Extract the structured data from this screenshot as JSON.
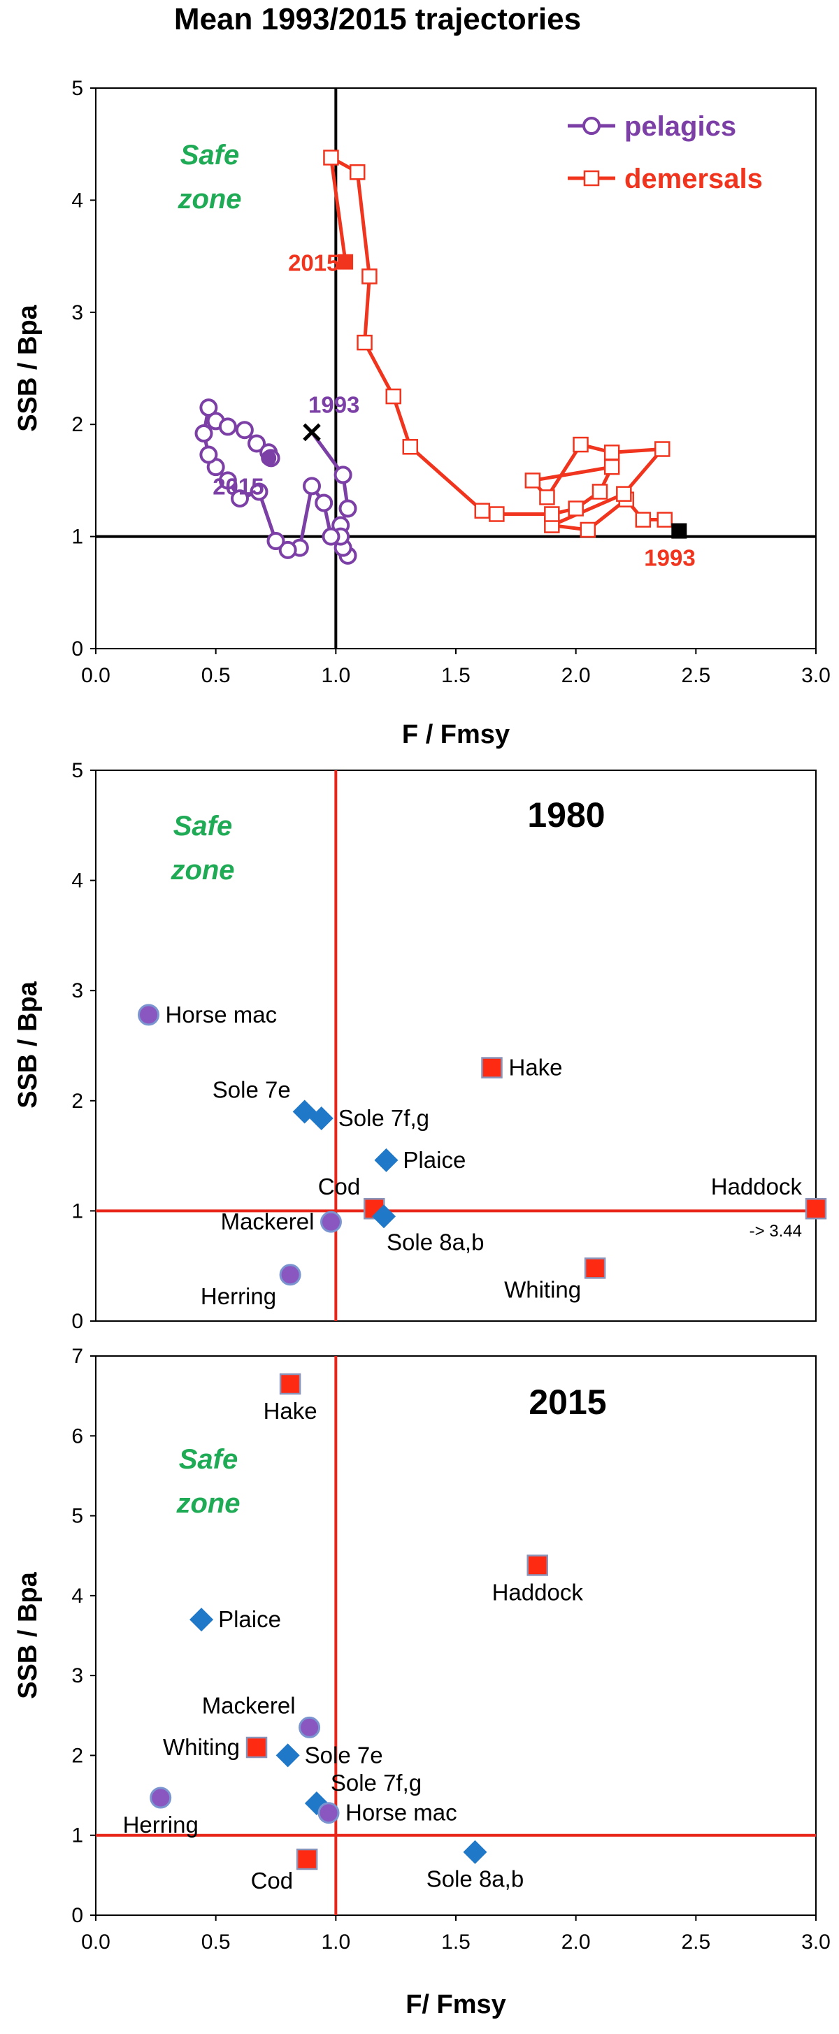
{
  "figure_title": "Mean 1993/2015 trajectories",
  "colors": {
    "pelagic": "#7b3fa6",
    "demersal": "#f0341d",
    "safe": "#1faa55",
    "refline_top": "#000000",
    "refline_lower": "#e8261a",
    "diamond": "#1f78c8",
    "circle_fill": "#8a56bf",
    "circle_edge": "#7a95d0",
    "square_edge": "#8a93b8"
  },
  "icons": {
    "pelagic_marker": "open-circle-icon",
    "demersal_marker": "open-square-icon",
    "cross_marker": "cross-icon",
    "diamond_marker": "diamond-icon"
  },
  "chart_data": [
    {
      "type": "line",
      "title": "Mean 1993/2015 trajectories",
      "xlabel": "F / Fmsy",
      "ylabel": "SSB / Bpa",
      "xlim": [
        0,
        3
      ],
      "ylim": [
        0,
        5
      ],
      "x_ticks": [
        "0.0",
        "0.5",
        "1.0",
        "1.5",
        "2.0",
        "2.5",
        "3.0"
      ],
      "y_ticks": [
        "0",
        "1",
        "2",
        "3",
        "4",
        "5"
      ],
      "grid": false,
      "reference_lines": {
        "x": 1,
        "y": 1
      },
      "zone_label": [
        "Safe",
        "zone"
      ],
      "legend_position": "top-right",
      "series": [
        {
          "name": "pelagics",
          "marker": "open-circle",
          "x": [
            0.9,
            1.03,
            1.05,
            1.02,
            1.05,
            1.03,
            1.02,
            0.98,
            0.95,
            0.9,
            0.85,
            0.8,
            0.75,
            0.68,
            0.6,
            0.55,
            0.5,
            0.47,
            0.45,
            0.47,
            0.5,
            0.55,
            0.62,
            0.67,
            0.72,
            0.73,
            0.72
          ],
          "y": [
            1.93,
            1.55,
            1.25,
            1.1,
            0.83,
            0.9,
            1.0,
            1.0,
            1.3,
            1.45,
            0.9,
            0.88,
            0.96,
            1.4,
            1.34,
            1.5,
            1.62,
            1.73,
            1.92,
            2.15,
            2.03,
            1.98,
            1.95,
            1.83,
            1.75,
            1.7,
            1.7
          ],
          "start": {
            "year": "1993",
            "x": 0.9,
            "y": 1.93,
            "marker": "cross"
          },
          "end": {
            "year": "2015",
            "x": 0.72,
            "y": 1.7,
            "marker": "filled-circle"
          }
        },
        {
          "name": "demersals",
          "marker": "open-square",
          "x": [
            2.43,
            2.37,
            2.28,
            2.21,
            2.05,
            1.9,
            2.2,
            2.36,
            2.15,
            2.02,
            1.88,
            1.82,
            2.15,
            2.1,
            2.0,
            1.9,
            1.67,
            1.61,
            1.31,
            1.24,
            1.12,
            1.14,
            1.09,
            0.98,
            1.04
          ],
          "y": [
            1.05,
            1.15,
            1.15,
            1.33,
            1.06,
            1.1,
            1.38,
            1.78,
            1.75,
            1.82,
            1.35,
            1.5,
            1.62,
            1.4,
            1.25,
            1.2,
            1.2,
            1.23,
            1.8,
            2.25,
            2.73,
            3.32,
            4.25,
            4.38,
            3.45
          ],
          "start": {
            "year": "1993",
            "x": 2.43,
            "y": 1.05,
            "marker": "filled-square"
          },
          "end": {
            "year": "2015",
            "x": 1.04,
            "y": 3.45,
            "marker": "filled-square"
          }
        }
      ]
    },
    {
      "type": "scatter",
      "title": "1980",
      "xlabel": "",
      "ylabel": "SSB  / Bpa",
      "xlim": [
        0,
        3
      ],
      "ylim": [
        0,
        5
      ],
      "y_ticks": [
        "0",
        "1",
        "2",
        "3",
        "4",
        "5"
      ],
      "grid": false,
      "reference_lines": {
        "x": 1,
        "y": 1
      },
      "zone_label": [
        "Safe",
        "zone"
      ],
      "points": [
        {
          "label": "Horse mac",
          "x": 0.22,
          "y": 2.78,
          "group": "pelagic",
          "marker": "circle",
          "label_pos": "right"
        },
        {
          "label": "Hake",
          "x": 1.65,
          "y": 2.3,
          "group": "demersal",
          "marker": "square",
          "label_pos": "right"
        },
        {
          "label": "Sole 7e",
          "x": 0.87,
          "y": 1.9,
          "group": "sole",
          "marker": "diamond",
          "label_pos": "upper-left"
        },
        {
          "label": "Sole 7f,g",
          "x": 0.94,
          "y": 1.84,
          "group": "sole",
          "marker": "diamond",
          "label_pos": "right"
        },
        {
          "label": "Plaice",
          "x": 1.21,
          "y": 1.46,
          "group": "flatfish",
          "marker": "diamond",
          "label_pos": "right"
        },
        {
          "label": "Haddock",
          "x": 3.0,
          "y": 1.02,
          "group": "demersal",
          "marker": "square",
          "label_pos": "upper-left",
          "note": "-> 3.44"
        },
        {
          "label": "Cod",
          "x": 1.16,
          "y": 1.02,
          "group": "demersal",
          "marker": "square",
          "label_pos": "upper-left"
        },
        {
          "label": "Sole 8a,b",
          "x": 1.2,
          "y": 0.95,
          "group": "sole",
          "marker": "diamond",
          "label_pos": "lower-right"
        },
        {
          "label": "Mackerel",
          "x": 0.98,
          "y": 0.9,
          "group": "pelagic",
          "marker": "circle",
          "label_pos": "left"
        },
        {
          "label": "Whiting",
          "x": 2.08,
          "y": 0.48,
          "group": "demersal",
          "marker": "square",
          "label_pos": "lower-left"
        },
        {
          "label": "Herring",
          "x": 0.81,
          "y": 0.42,
          "group": "pelagic",
          "marker": "circle",
          "label_pos": "lower-left"
        }
      ]
    },
    {
      "type": "scatter",
      "title": "2015",
      "xlabel": "F/ Fmsy",
      "ylabel": "SSB  / Bpa",
      "xlim": [
        0,
        3
      ],
      "ylim": [
        0,
        7
      ],
      "x_ticks": [
        "0.0",
        "0.5",
        "1.0",
        "1.5",
        "2.0",
        "2.5",
        "3.0"
      ],
      "y_ticks": [
        "0",
        "1",
        "2",
        "3",
        "4",
        "5",
        "6",
        "7"
      ],
      "grid": false,
      "reference_lines": {
        "x": 1,
        "y": 1
      },
      "zone_label": [
        "Safe",
        "zone"
      ],
      "points": [
        {
          "label": "Hake",
          "x": 0.81,
          "y": 6.65,
          "group": "demersal",
          "marker": "square",
          "label_pos": "below"
        },
        {
          "label": "Haddock",
          "x": 1.84,
          "y": 4.38,
          "group": "demersal",
          "marker": "square",
          "label_pos": "below"
        },
        {
          "label": "Plaice",
          "x": 0.44,
          "y": 3.7,
          "group": "flatfish",
          "marker": "diamond",
          "label_pos": "right"
        },
        {
          "label": "Mackerel",
          "x": 0.89,
          "y": 2.35,
          "group": "pelagic",
          "marker": "circle",
          "label_pos": "upper-left"
        },
        {
          "label": "Whiting",
          "x": 0.67,
          "y": 2.1,
          "group": "demersal",
          "marker": "square",
          "label_pos": "left"
        },
        {
          "label": "Sole 7e",
          "x": 0.8,
          "y": 2.0,
          "group": "sole",
          "marker": "diamond",
          "label_pos": "right"
        },
        {
          "label": "Herring",
          "x": 0.27,
          "y": 1.47,
          "group": "pelagic",
          "marker": "circle",
          "label_pos": "below"
        },
        {
          "label": "Sole 7f,g",
          "x": 0.92,
          "y": 1.4,
          "group": "sole",
          "marker": "diamond",
          "label_pos": "upper-right"
        },
        {
          "label": "Horse mac",
          "x": 0.97,
          "y": 1.28,
          "group": "pelagic",
          "marker": "circle",
          "label_pos": "right"
        },
        {
          "label": "Sole 8a,b",
          "x": 1.58,
          "y": 0.79,
          "group": "sole",
          "marker": "diamond",
          "label_pos": "below"
        },
        {
          "label": "Cod",
          "x": 0.88,
          "y": 0.7,
          "group": "demersal",
          "marker": "square",
          "label_pos": "lower-left"
        }
      ]
    }
  ]
}
